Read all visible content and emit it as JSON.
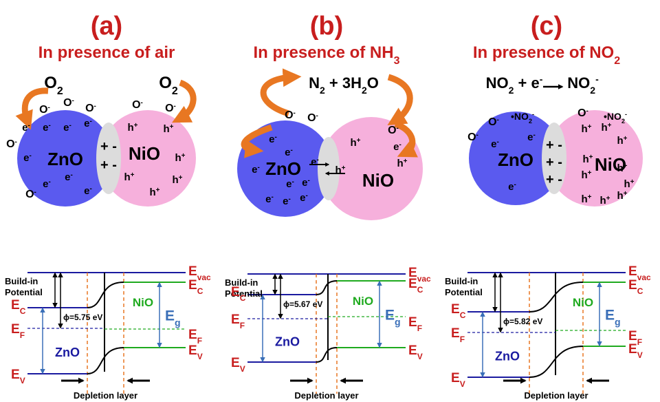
{
  "panels": [
    {
      "label": "(a)",
      "title": [
        {
          "text": "In presence of air"
        }
      ],
      "particles": [
        [
          {
            "text": "O"
          },
          {
            "sub": "2"
          }
        ],
        [
          {
            "text": "O"
          },
          {
            "sub": "2"
          }
        ],
        [
          {
            "text": "O"
          },
          {
            "sup": "-"
          }
        ],
        [
          {
            "text": "O"
          },
          {
            "sup": "-"
          }
        ],
        [
          {
            "text": "O"
          },
          {
            "sup": "-"
          }
        ],
        [
          {
            "text": "O"
          },
          {
            "sup": "-"
          }
        ],
        [
          {
            "text": "O"
          },
          {
            "sup": "-"
          }
        ],
        [
          {
            "text": "O"
          },
          {
            "sup": "-"
          }
        ],
        [
          {
            "text": "O"
          },
          {
            "sup": "-"
          }
        ],
        [
          {
            "text": "e"
          },
          {
            "sup": "-"
          }
        ],
        [
          {
            "text": "e"
          },
          {
            "sup": "-"
          }
        ],
        [
          {
            "text": "e"
          },
          {
            "sup": "-"
          }
        ],
        [
          {
            "text": "e"
          },
          {
            "sup": "-"
          }
        ],
        [
          {
            "text": "e"
          },
          {
            "sup": "-"
          }
        ],
        [
          {
            "text": "e"
          },
          {
            "sup": "-"
          }
        ],
        [
          {
            "text": "e"
          },
          {
            "sup": "-"
          }
        ],
        [
          {
            "text": "e"
          },
          {
            "sup": "-"
          }
        ],
        [
          {
            "text": "h"
          },
          {
            "sup": "+"
          }
        ],
        [
          {
            "text": "h"
          },
          {
            "sup": "+"
          }
        ],
        [
          {
            "text": "h"
          },
          {
            "sup": "+"
          }
        ],
        [
          {
            "text": "h"
          },
          {
            "sup": "+"
          }
        ],
        [
          {
            "text": "h"
          },
          {
            "sup": "+"
          }
        ],
        [
          {
            "text": "h"
          },
          {
            "sup": "+"
          }
        ],
        [
          {
            "text": "+ -"
          }
        ],
        [
          {
            "text": "+ -"
          }
        ],
        [
          {
            "text": "ZnO"
          }
        ],
        [
          {
            "text": "NiO"
          }
        ]
      ],
      "band": {
        "build_in": [
          "Build-in",
          "Potential"
        ],
        "e_vac": [
          {
            "text": "E"
          },
          {
            "sub": "vac"
          }
        ],
        "e_c_left": [
          {
            "text": "E"
          },
          {
            "sub": "C"
          }
        ],
        "e_f_left": [
          {
            "text": "E"
          },
          {
            "sub": "F"
          }
        ],
        "e_v_left": [
          {
            "text": "E"
          },
          {
            "sub": "V"
          }
        ],
        "e_c_right": [
          {
            "text": "E"
          },
          {
            "sub": "C"
          }
        ],
        "e_f_right": [
          {
            "text": "E"
          },
          {
            "sub": "F"
          }
        ],
        "e_v_right": [
          {
            "text": "E"
          },
          {
            "sub": "V"
          }
        ],
        "phi": "ϕ=5.75 eV",
        "zno": "ZnO",
        "nio": "NiO",
        "e_g": [
          {
            "text": "E"
          },
          {
            "sub": "g"
          }
        ],
        "depletion": "Depletion layer"
      }
    },
    {
      "label": "(b)",
      "title": [
        {
          "text": "In presence of NH"
        },
        {
          "sub": "3"
        }
      ],
      "top": [
        [
          {
            "text": "N"
          },
          {
            "sub": "2"
          },
          {
            "text": " + 3H"
          },
          {
            "sub": "2"
          },
          {
            "text": "O"
          }
        ]
      ],
      "particles": [
        [
          {
            "text": "O"
          },
          {
            "sup": "-"
          }
        ],
        [
          {
            "text": "O"
          },
          {
            "sup": "-"
          }
        ],
        [
          {
            "text": "O"
          },
          {
            "sup": "-"
          }
        ],
        [
          {
            "text": "e"
          },
          {
            "sup": "-"
          }
        ],
        [
          {
            "text": "e"
          },
          {
            "sup": "-"
          }
        ],
        [
          {
            "text": "e"
          },
          {
            "sup": "-"
          }
        ],
        [
          {
            "text": "e"
          },
          {
            "sup": "-"
          }
        ],
        [
          {
            "text": "e"
          },
          {
            "sup": "-"
          }
        ],
        [
          {
            "text": "e"
          },
          {
            "sup": "-"
          }
        ],
        [
          {
            "text": "e"
          },
          {
            "sup": "-"
          }
        ],
        [
          {
            "text": "e"
          },
          {
            "sup": "-"
          }
        ],
        [
          {
            "text": "e"
          },
          {
            "sup": "-"
          }
        ],
        [
          {
            "text": "e"
          },
          {
            "sup": "-"
          }
        ],
        [
          {
            "text": "h"
          },
          {
            "sup": "+"
          }
        ],
        [
          {
            "text": "h"
          },
          {
            "sup": "+"
          }
        ],
        [
          {
            "text": "h"
          },
          {
            "sup": "+"
          }
        ],
        [
          {
            "text": "ZnO"
          }
        ],
        [
          {
            "text": "NiO"
          }
        ]
      ],
      "band": {
        "build_in": [
          "Build-in",
          "Potential"
        ],
        "e_vac": [
          {
            "text": "E"
          },
          {
            "sub": "vac"
          }
        ],
        "e_c_left": [
          {
            "text": "E"
          },
          {
            "sub": "C"
          }
        ],
        "e_f_left": [
          {
            "text": "E"
          },
          {
            "sub": "F"
          }
        ],
        "e_v_left": [
          {
            "text": "E"
          },
          {
            "sub": "V"
          }
        ],
        "e_c_right": [
          {
            "text": "E"
          },
          {
            "sub": "C"
          }
        ],
        "e_f_right": [
          {
            "text": "E"
          },
          {
            "sub": "F"
          }
        ],
        "e_v_right": [
          {
            "text": "E"
          },
          {
            "sub": "V"
          }
        ],
        "phi": "ϕ=5.67 eV",
        "zno": "ZnO",
        "nio": "NiO",
        "e_g": [
          {
            "text": "E"
          },
          {
            "sub": "g"
          }
        ],
        "depletion": "Depletion layer"
      }
    },
    {
      "label": "(c)",
      "title": [
        {
          "text": "In presence of NO"
        },
        {
          "sub": "2"
        }
      ],
      "top": [
        [
          {
            "text": "NO"
          },
          {
            "sub": "2"
          },
          {
            "text": " + e"
          },
          {
            "sup": "-"
          }
        ],
        [
          {
            "text": "NO"
          },
          {
            "sub": "2"
          },
          {
            "sup": "-"
          }
        ]
      ],
      "particles": [
        [
          {
            "text": "O"
          },
          {
            "sup": "-"
          }
        ],
        [
          {
            "text": "O"
          },
          {
            "sup": "-"
          }
        ],
        [
          {
            "text": "O"
          },
          {
            "sup": "-"
          }
        ],
        [
          {
            "text": "•NO"
          },
          {
            "sub": "2"
          },
          {
            "sup": "-"
          }
        ],
        [
          {
            "text": "•NO"
          },
          {
            "sub": "2"
          },
          {
            "sup": "-"
          }
        ],
        [
          {
            "text": "e"
          },
          {
            "sup": "-"
          }
        ],
        [
          {
            "text": "e"
          },
          {
            "sup": "-"
          }
        ],
        [
          {
            "text": "e"
          },
          {
            "sup": "-"
          }
        ],
        [
          {
            "text": "h"
          },
          {
            "sup": "+"
          }
        ],
        [
          {
            "text": "h"
          },
          {
            "sup": "+"
          }
        ],
        [
          {
            "text": "h"
          },
          {
            "sup": "+"
          }
        ],
        [
          {
            "text": "h"
          },
          {
            "sup": "+"
          }
        ],
        [
          {
            "text": "h"
          },
          {
            "sup": "+"
          }
        ],
        [
          {
            "text": "h"
          },
          {
            "sup": "+"
          }
        ],
        [
          {
            "text": "h"
          },
          {
            "sup": "+"
          }
        ],
        [
          {
            "text": "h"
          },
          {
            "sup": "+"
          }
        ],
        [
          {
            "text": "h"
          },
          {
            "sup": "+"
          }
        ],
        [
          {
            "text": "h"
          },
          {
            "sup": "+"
          }
        ],
        [
          {
            "text": "+ -"
          }
        ],
        [
          {
            "text": "+ -"
          }
        ],
        [
          {
            "text": "+ -"
          }
        ],
        [
          {
            "text": "ZnO"
          }
        ],
        [
          {
            "text": "NiO"
          }
        ]
      ],
      "band": {
        "build_in": [
          "Build-in",
          "Potential"
        ],
        "e_vac": [
          {
            "text": "E"
          },
          {
            "sub": "vac"
          }
        ],
        "e_c_left": [
          {
            "text": "E"
          },
          {
            "sub": "C"
          }
        ],
        "e_f_left": [
          {
            "text": "E"
          },
          {
            "sub": "F"
          }
        ],
        "e_v_left": [
          {
            "text": "E"
          },
          {
            "sub": "V"
          }
        ],
        "e_c_right": [
          {
            "text": "E"
          },
          {
            "sub": "C"
          }
        ],
        "e_f_right": [
          {
            "text": "E"
          },
          {
            "sub": "F"
          }
        ],
        "e_v_right": [
          {
            "text": "E"
          },
          {
            "sub": "V"
          }
        ],
        "phi": "ϕ=5.82 eV",
        "zno": "ZnO",
        "nio": "NiO",
        "e_g": [
          {
            "text": "E"
          },
          {
            "sub": "g"
          }
        ],
        "depletion": "Depletion layer"
      }
    }
  ]
}
